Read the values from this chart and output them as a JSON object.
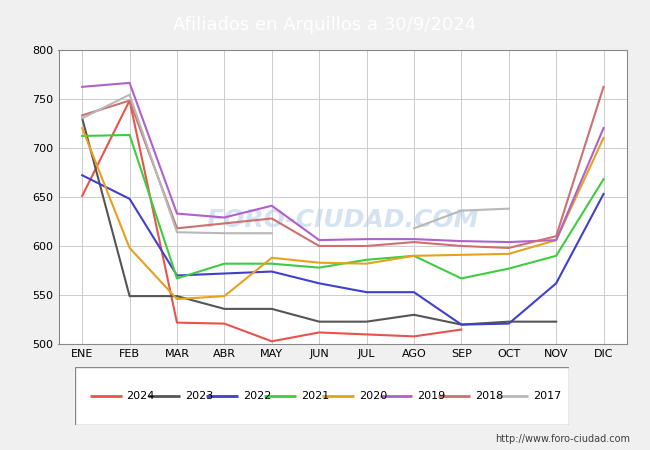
{
  "title": "Afiliados en Arquillos a 30/9/2024",
  "title_bg_color": "#4a90d9",
  "ylim": [
    500,
    800
  ],
  "yticks": [
    500,
    550,
    600,
    650,
    700,
    750,
    800
  ],
  "months": [
    "ENE",
    "FEB",
    "MAR",
    "ABR",
    "MAY",
    "JUN",
    "JUL",
    "AGO",
    "SEP",
    "OCT",
    "NOV",
    "DIC"
  ],
  "watermark": "FORO-CIUDAD.COM",
  "url": "http://www.foro-ciudad.com",
  "series": [
    {
      "year": "2024",
      "color": "#e8534a",
      "linewidth": 1.5,
      "data": [
        651,
        748,
        522,
        521,
        503,
        512,
        510,
        508,
        515,
        null,
        null,
        null
      ]
    },
    {
      "year": "2023",
      "color": "#555555",
      "linewidth": 1.5,
      "data": [
        730,
        549,
        549,
        536,
        536,
        523,
        523,
        530,
        520,
        523,
        523,
        null
      ]
    },
    {
      "year": "2022",
      "color": "#4040cc",
      "linewidth": 1.5,
      "data": [
        672,
        648,
        570,
        572,
        574,
        562,
        553,
        553,
        520,
        521,
        562,
        653
      ]
    },
    {
      "year": "2021",
      "color": "#40cc40",
      "linewidth": 1.5,
      "data": [
        712,
        713,
        567,
        582,
        582,
        578,
        586,
        590,
        567,
        577,
        590,
        668
      ]
    },
    {
      "year": "2020",
      "color": "#e8a020",
      "linewidth": 1.5,
      "data": [
        720,
        598,
        546,
        549,
        588,
        583,
        582,
        590,
        591,
        592,
        606,
        710
      ]
    },
    {
      "year": "2019",
      "color": "#b060cc",
      "linewidth": 1.5,
      "data": [
        762,
        766,
        633,
        629,
        641,
        606,
        607,
        607,
        605,
        604,
        606,
        720
      ]
    },
    {
      "year": "2018",
      "color": "#cc7070",
      "linewidth": 1.5,
      "data": [
        733,
        748,
        618,
        623,
        628,
        600,
        600,
        604,
        600,
        598,
        610,
        762
      ]
    },
    {
      "year": "2017",
      "color": "#b8b8b8",
      "linewidth": 1.5,
      "data": [
        730,
        754,
        614,
        613,
        613,
        null,
        null,
        618,
        636,
        638,
        null,
        null
      ]
    }
  ],
  "legend_order": [
    "2024",
    "2023",
    "2022",
    "2021",
    "2020",
    "2019",
    "2018",
    "2017"
  ],
  "bg_color": "#f0f0f0",
  "plot_bg_color": "#ffffff",
  "grid_color": "#cccccc"
}
